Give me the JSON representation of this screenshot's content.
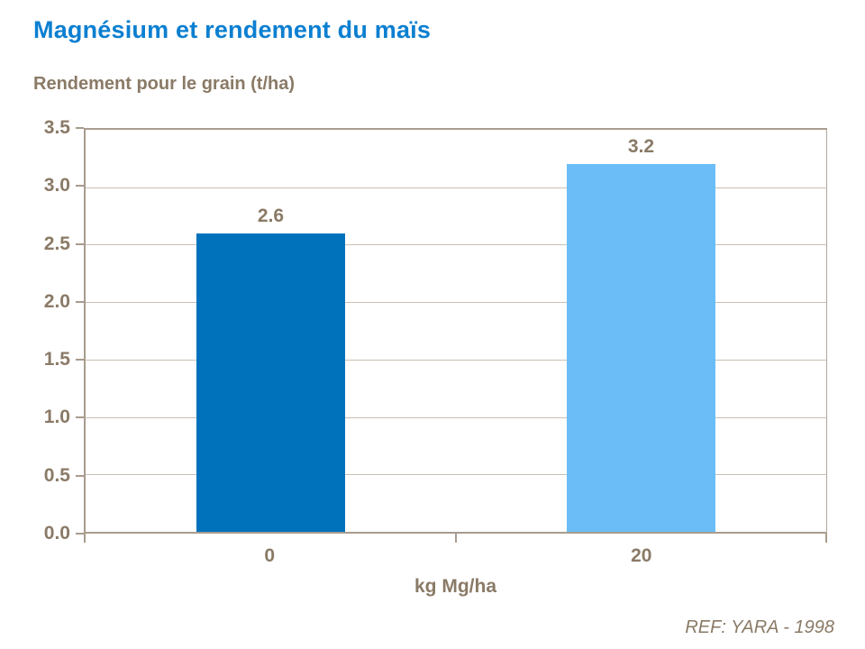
{
  "title": "Magnésium et rendement du maïs",
  "subtitle": "Rendement pour le grain (t/ha)",
  "source_ref": "REF: YARA - 1998",
  "colors": {
    "title_blue": "#0b7fd1",
    "label_brown": "#8a7a66",
    "axis_line": "#a89c8e",
    "gridline": "#c9c0b5",
    "bar_0": "#0072bc",
    "bar_20": "#6bbdf8"
  },
  "chart_data": {
    "type": "bar",
    "title": "Magnésium et rendement du maïs",
    "subtitle": "Rendement pour le grain (t/ha)",
    "categories": [
      "0",
      "20"
    ],
    "values": [
      2.6,
      3.2
    ],
    "value_labels": [
      "2.6",
      "3.2"
    ],
    "bar_colors": [
      "#0072bc",
      "#6bbdf8"
    ],
    "xlabel": "kg Mg/ha",
    "ylabel": "Rendement pour le grain (t/ha)",
    "ylim": [
      0,
      3.5
    ],
    "ytick_step": 0.5,
    "yticks": [
      "3.5",
      "3.0",
      "2.5",
      "2.0",
      "1.5",
      "1.0",
      "0.5",
      "0.0"
    ],
    "grid": true,
    "legend_position": "none",
    "annotations": [
      "REF: YARA - 1998"
    ]
  }
}
